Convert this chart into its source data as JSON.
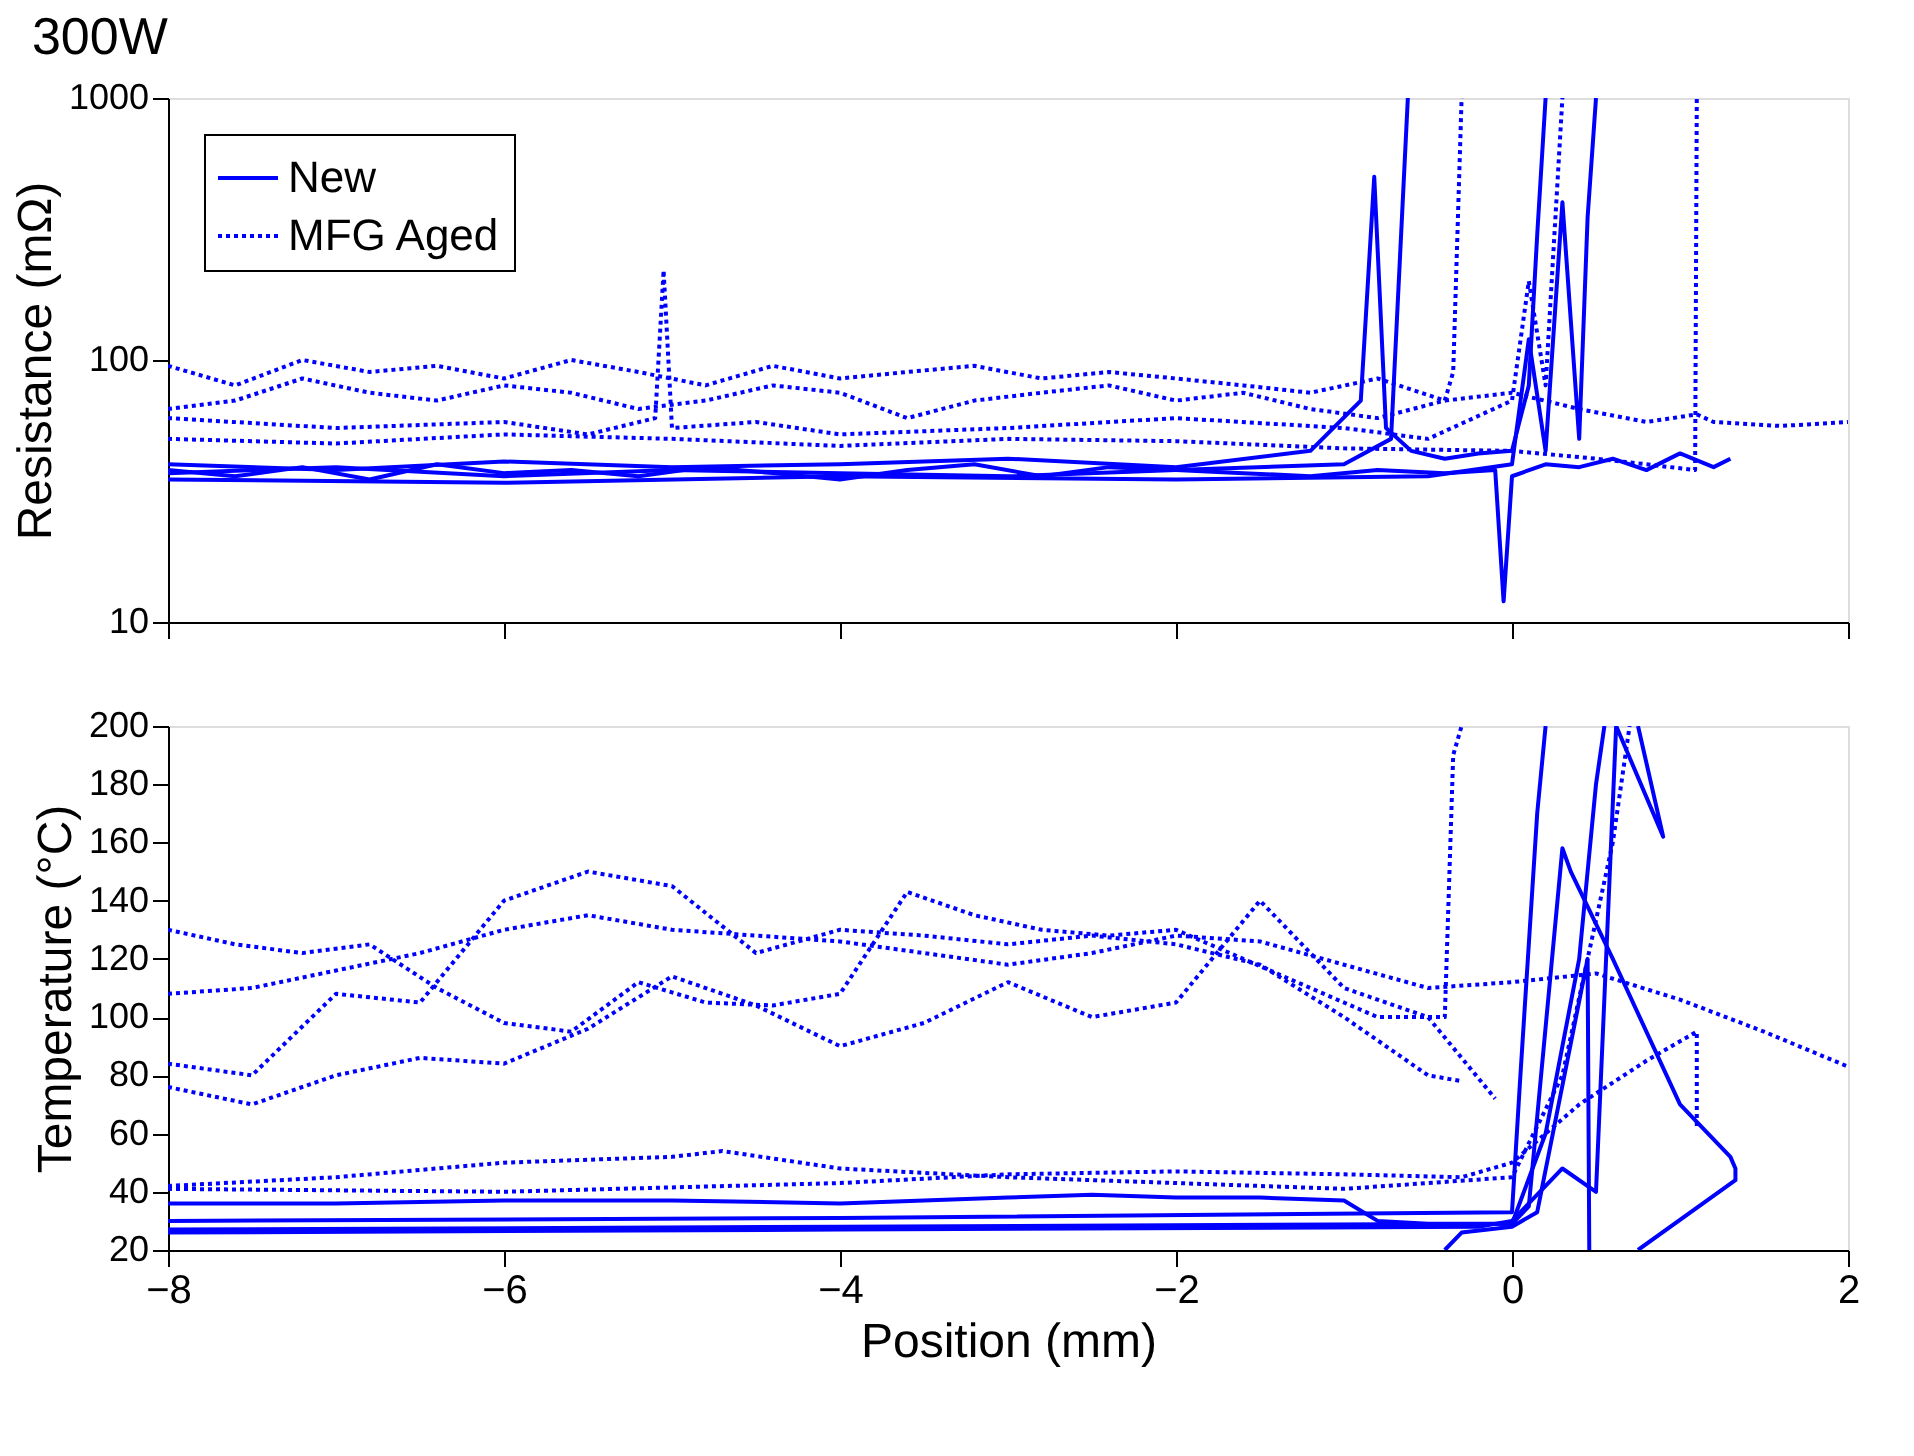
{
  "chart_data": [
    {
      "type": "line",
      "title": "300W",
      "ylabel": "Resistance (mΩ)",
      "log": true,
      "xlim": [
        -8,
        2
      ],
      "xticks": [
        -8,
        -6,
        -4,
        -2,
        0,
        2
      ],
      "ylim": [
        10,
        1000
      ],
      "yticks": [
        10,
        100,
        1000
      ],
      "tick_labels": "y",
      "legend": "top left",
      "grid": false,
      "series": [
        {
          "name": "New",
          "color": "#0000ff",
          "line_style": "solid",
          "x": [
            -8,
            -7.6,
            -7.2,
            -6.8,
            -6.4,
            -6,
            -5.6,
            -5.2,
            -4.8,
            -4.4,
            -4,
            -3.6,
            -3.2,
            -2.8,
            -2.4,
            -2,
            -1.6,
            -1.2,
            -0.8,
            -0.4,
            -0.1,
            -0.05,
            0,
            0.2,
            0.4,
            0.6,
            0.8,
            1.0,
            1.2,
            1.3
          ],
          "values": [
            38,
            36,
            39,
            35,
            40,
            37,
            38,
            36,
            39,
            37,
            35,
            38,
            40,
            36,
            39,
            38,
            37,
            36,
            38,
            37,
            38,
            12,
            36,
            40,
            39,
            42,
            38,
            44,
            39,
            42
          ]
        },
        {
          "color": "#0000ff",
          "line_style": "solid",
          "x": [
            -8,
            -7,
            -6,
            -5,
            -4,
            -3,
            -2,
            -1.2,
            -0.9,
            -0.82,
            -0.75,
            -0.6,
            -0.4,
            -0.2,
            0,
            0.1,
            0.15,
            0.2
          ],
          "values": [
            40,
            38,
            41,
            39,
            40,
            42,
            39,
            45,
            70,
            500,
            55,
            45,
            42,
            44,
            45,
            80,
            300,
            1000
          ]
        },
        {
          "color": "#0000ff",
          "line_style": "solid",
          "x": [
            -8,
            -7,
            -6,
            -5,
            -4,
            -3,
            -2,
            -1,
            -0.72,
            -0.62
          ],
          "values": [
            37,
            39,
            36,
            38,
            37,
            36,
            38,
            40,
            50,
            1000
          ]
        },
        {
          "color": "#0000ff",
          "line_style": "solid",
          "x": [
            -8,
            -6,
            -4,
            -2,
            -0.5,
            0,
            0.1,
            0.2,
            0.3,
            0.4,
            0.45,
            0.5
          ],
          "values": [
            35,
            34,
            36,
            35,
            36,
            40,
            120,
            45,
            400,
            50,
            350,
            1000
          ]
        },
        {
          "name": "MFG Aged",
          "color": "#0000ff",
          "line_style": "dotted",
          "x": [
            -8,
            -7.6,
            -7.2,
            -6.8,
            -6.4,
            -6,
            -5.6,
            -5.2,
            -4.8,
            -4.4,
            -4,
            -3.6,
            -3.2,
            -2.8,
            -2.4,
            -2,
            -1.6,
            -1.2,
            -0.8,
            -0.4,
            0,
            0.4,
            0.8,
            1.1,
            1.2,
            1.6,
            2
          ],
          "values": [
            95,
            80,
            100,
            90,
            95,
            85,
            100,
            90,
            80,
            95,
            85,
            90,
            95,
            85,
            90,
            85,
            80,
            75,
            85,
            70,
            75,
            65,
            58,
            62,
            58,
            56,
            58
          ]
        },
        {
          "color": "#0000ff",
          "line_style": "dotted",
          "x": [
            -8,
            -7.6,
            -7.2,
            -6.8,
            -6.4,
            -6,
            -5.6,
            -5.2,
            -4.8,
            -4.4,
            -4,
            -3.6,
            -3.2,
            -2.8,
            -2.4,
            -2,
            -1.6,
            -1.2,
            -0.8,
            -0.4,
            -0.35,
            -0.3
          ],
          "values": [
            65,
            70,
            85,
            75,
            70,
            80,
            75,
            65,
            70,
            80,
            75,
            60,
            70,
            75,
            80,
            70,
            75,
            65,
            60,
            70,
            90,
            1000
          ]
        },
        {
          "color": "#0000ff",
          "line_style": "dotted",
          "x": [
            -8,
            -7,
            -6,
            -5.5,
            -5.1,
            -5.05,
            -5,
            -4.5,
            -4,
            -3,
            -2,
            -1,
            -0.5,
            0,
            0.1,
            0.2,
            0.3
          ],
          "values": [
            60,
            55,
            58,
            52,
            60,
            220,
            55,
            58,
            52,
            55,
            60,
            55,
            50,
            70,
            200,
            80,
            1000
          ]
        },
        {
          "color": "#0000ff",
          "line_style": "dotted",
          "x": [
            -8,
            -7,
            -6,
            -5,
            -4,
            -3,
            -2,
            -1,
            0,
            0.5,
            0.8,
            1.09,
            1.1
          ],
          "values": [
            50,
            48,
            52,
            50,
            47,
            50,
            49,
            46,
            45,
            42,
            40,
            38,
            1000
          ]
        }
      ]
    },
    {
      "type": "line",
      "xlabel": "Position (mm)",
      "ylabel": "Temperature (°C)",
      "xlim": [
        -8,
        2
      ],
      "xticks": [
        -8,
        -6,
        -4,
        -2,
        0,
        2
      ],
      "ylim": [
        20,
        200
      ],
      "yticks": [
        20,
        40,
        60,
        80,
        100,
        120,
        140,
        160,
        180,
        200
      ],
      "grid": false,
      "series": [
        {
          "color": "#0000ff",
          "line_style": "dotted",
          "x": [
            -8,
            -7.5,
            -7,
            -6.5,
            -6,
            -5.5,
            -5,
            -4.5,
            -4,
            -3.5,
            -3,
            -2.5,
            -2,
            -1.5,
            -1,
            -0.5,
            0,
            0.5,
            1,
            1.5,
            2
          ],
          "values": [
            108,
            110,
            116,
            122,
            130,
            135,
            130,
            128,
            126,
            122,
            118,
            122,
            128,
            126,
            118,
            110,
            112,
            115,
            106,
            95,
            83
          ]
        },
        {
          "color": "#0000ff",
          "line_style": "dotted",
          "x": [
            -8,
            -7.5,
            -7,
            -6.5,
            -6,
            -5.5,
            -5,
            -4.5,
            -4,
            -3.5,
            -3,
            -2.5,
            -2,
            -1.5,
            -1,
            -0.5,
            -0.3
          ],
          "values": [
            84,
            80,
            108,
            105,
            140,
            150,
            145,
            122,
            130,
            128,
            125,
            128,
            125,
            118,
            100,
            80,
            78
          ]
        },
        {
          "color": "#0000ff",
          "line_style": "dotted",
          "x": [
            -8,
            -7.5,
            -7,
            -6.5,
            -6,
            -5.5,
            -5,
            -4.5,
            -4,
            -3.5,
            -3,
            -2.5,
            -2,
            -1.5,
            -1,
            -0.5,
            -0.1
          ],
          "values": [
            76,
            70,
            80,
            86,
            84,
            96,
            114,
            104,
            90,
            98,
            112,
            100,
            105,
            140,
            110,
            100,
            72
          ]
        },
        {
          "color": "#0000ff",
          "line_style": "dotted",
          "x": [
            -8,
            -7.6,
            -7.2,
            -6.8,
            -6.4,
            -6,
            -5.6,
            -5.2,
            -4.8,
            -4.4,
            -4,
            -3.6,
            -3.2,
            -2.8,
            -2.4,
            -2,
            -1.6,
            -1.2,
            -0.8,
            -0.4,
            -0.35,
            -0.3
          ],
          "values": [
            130,
            125,
            122,
            125,
            110,
            98,
            95,
            112,
            105,
            104,
            108,
            143,
            135,
            130,
            128,
            130,
            120,
            110,
            100,
            100,
            190,
            200
          ]
        },
        {
          "color": "#0000ff",
          "line_style": "dotted",
          "x": [
            -8,
            -7,
            -6,
            -5,
            -4.7,
            -4,
            -3,
            -2,
            -1,
            0,
            0.3,
            0.6,
            0.7
          ],
          "values": [
            42,
            45,
            50,
            52,
            54,
            48,
            45,
            43,
            41,
            45,
            80,
            160,
            200
          ]
        },
        {
          "color": "#0000ff",
          "line_style": "dotted",
          "x": [
            -8,
            -6,
            -4,
            -3,
            -2,
            -1,
            -0.3,
            0,
            0.4,
            0.8,
            1.1,
            1.1
          ],
          "values": [
            41,
            40,
            43,
            46,
            47,
            46,
            45,
            50,
            70,
            85,
            95,
            62
          ]
        },
        {
          "color": "#0000ff",
          "line_style": "solid",
          "x": [
            -8,
            -7,
            -6,
            -5,
            -4,
            -3,
            -2.5,
            -2,
            -1.5,
            -1,
            -0.8,
            -0.5,
            0,
            0.2,
            0.4,
            0.5,
            0.55
          ],
          "values": [
            36,
            36,
            37,
            37,
            36,
            38,
            39,
            38,
            38,
            37,
            30,
            29,
            29,
            60,
            120,
            180,
            200
          ]
        },
        {
          "color": "#0000ff",
          "line_style": "solid",
          "x": [
            -8,
            -4,
            0,
            0.05,
            0.15,
            0.2
          ],
          "values": [
            30,
            31,
            33,
            80,
            170,
            200
          ]
        },
        {
          "color": "#0000ff",
          "line_style": "solid",
          "x": [
            -8,
            -4,
            0,
            0.1,
            0.3,
            0.35,
            0.6,
            1.0,
            1.3,
            1.33,
            1.33,
            0.75
          ],
          "values": [
            27,
            28,
            29,
            35,
            158,
            150,
            120,
            70,
            52,
            48,
            44,
            20
          ]
        },
        {
          "color": "#0000ff",
          "line_style": "solid",
          "x": [
            -8,
            -4,
            -0.2,
            0,
            0.3,
            0.5,
            0.62,
            0.9,
            0.75
          ],
          "values": [
            26,
            27,
            28,
            30,
            48,
            40,
            200,
            162,
            200
          ]
        },
        {
          "color": "#0000ff",
          "line_style": "solid",
          "x": [
            -0.4,
            -0.3,
            0,
            0.15,
            0.45,
            0.46
          ],
          "values": [
            20,
            26,
            28,
            33,
            120,
            20
          ]
        }
      ]
    }
  ]
}
